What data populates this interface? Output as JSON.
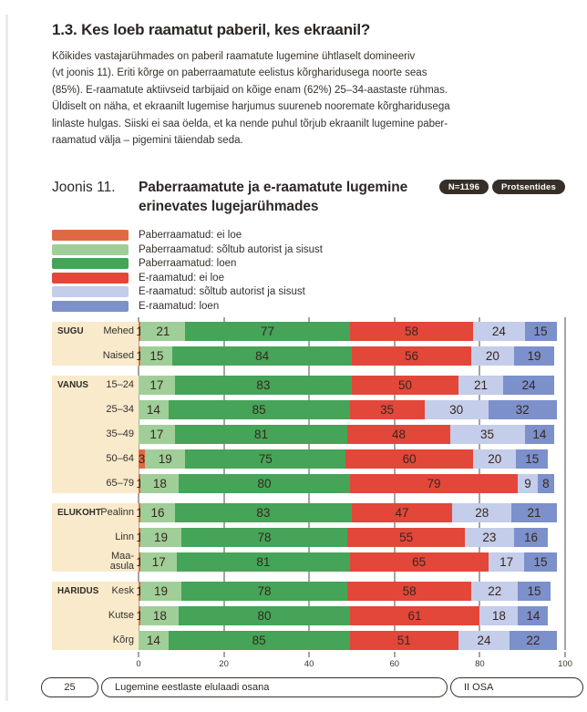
{
  "page": {
    "heading": "1.3. Kes loeb raamatut paberil, kes ekraanil?",
    "intro": "Kõikides vastajarühmades on paberil raamatute lugemine ühtlaselt domineeriv\n(vt joonis 11). Eriti kõrge on paberraamatute eelistus kõrgharidusega noorte seas\n(85%). E-raamatute aktiivseid tarbijaid on kõige enam (62%) 25–34-aastaste rühmas.\nÜldiselt on näha, et ekraanilt lugemise harjumus suureneb nooremate kõrgharidusega\nlinlaste hulgas. Siiski ei saa öelda, et ka nende puhul tõrjub ekraanilt lugemine paber-\nraamatud välja – pigemini täiendab seda."
  },
  "figure": {
    "label": "Joonis 11.",
    "title": "Paberraamatute ja e-raamatute lugemine\nerinevates lugejarühmades",
    "badges": [
      {
        "label": "N=1196"
      },
      {
        "label": "Protsentides"
      }
    ]
  },
  "chart_data": {
    "type": "bar",
    "orientation": "horizontal",
    "stacked": true,
    "unit": "percent",
    "axis_range": [
      0,
      100
    ],
    "x_ticks": [
      0,
      20,
      40,
      60,
      80,
      100
    ],
    "scale_note": "Two 100% stacks per row: paper-book stack fills 0–50 of axis, e-book stack fills 50–100; each value occupies value/2 axis units.",
    "series": [
      {
        "name": "Paberraamatud: ei loe",
        "color": "#DE6A45"
      },
      {
        "name": "Paberraamatud: sõltub autorist ja sisust",
        "color": "#9FCE99"
      },
      {
        "name": "Paberraamatud: loen",
        "color": "#45A458"
      },
      {
        "name": "E-raamatud: ei loe",
        "color": "#E2473A"
      },
      {
        "name": "E-raamatud: sõltub autorist ja sisust",
        "color": "#C4CDE9"
      },
      {
        "name": "E-raamatud: loen",
        "color": "#7C90CB"
      }
    ],
    "groups": [
      {
        "name": "SUGU",
        "rows": [
          {
            "label": "Mehed",
            "values": [
              1,
              21,
              77,
              58,
              24,
              15
            ]
          },
          {
            "label": "Naised",
            "values": [
              1,
              15,
              84,
              56,
              20,
              19
            ]
          }
        ]
      },
      {
        "name": "VANUS",
        "rows": [
          {
            "label": "15–24",
            "values": [
              0,
              17,
              83,
              50,
              21,
              24
            ]
          },
          {
            "label": "25–34",
            "values": [
              0,
              14,
              85,
              35,
              30,
              32
            ]
          },
          {
            "label": "35–49",
            "values": [
              0,
              17,
              81,
              48,
              35,
              14
            ]
          },
          {
            "label": "50–64",
            "values": [
              3,
              19,
              75,
              60,
              20,
              15
            ]
          },
          {
            "label": "65–79",
            "values": [
              1,
              18,
              80,
              79,
              9,
              8
            ]
          }
        ]
      },
      {
        "name": "ELUKOHT",
        "rows": [
          {
            "label": "Pealinn",
            "values": [
              1,
              16,
              83,
              47,
              28,
              21
            ]
          },
          {
            "label": "Linn",
            "values": [
              1,
              19,
              78,
              55,
              23,
              16
            ]
          },
          {
            "label": "Maa-asula",
            "values": [
              1,
              17,
              81,
              65,
              17,
              15
            ]
          }
        ]
      },
      {
        "name": "HARIDUS",
        "rows": [
          {
            "label": "Kesk",
            "values": [
              1,
              19,
              78,
              58,
              22,
              15
            ]
          },
          {
            "label": "Kutse",
            "values": [
              1,
              18,
              80,
              61,
              18,
              14
            ]
          },
          {
            "label": "Kõrg",
            "values": [
              0,
              14,
              85,
              51,
              24,
              22
            ]
          }
        ]
      }
    ],
    "colors_meta": {
      "label_panel_bg": "#F8EACB",
      "gridline": "#4E4943",
      "bar_label_text": "#38271E",
      "badge_bg": "#362F28"
    }
  },
  "footer": {
    "page_number": "25",
    "left_title": "Lugemine eestlaste elulaadi osana",
    "right_title": "II OSA"
  }
}
